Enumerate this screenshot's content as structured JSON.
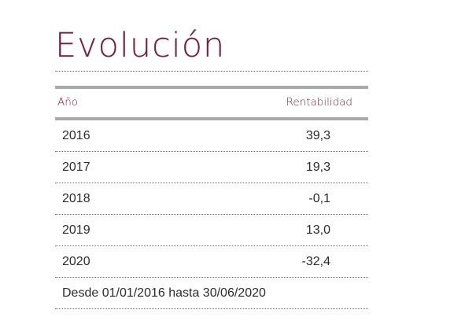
{
  "title": "Evolución",
  "table": {
    "headers": {
      "year": "Año",
      "return": "Rentabilidad"
    },
    "rows": [
      {
        "year": "2016",
        "return": "39,3"
      },
      {
        "year": "2017",
        "return": "19,3"
      },
      {
        "year": "2018",
        "return": "-0,1"
      },
      {
        "year": "2019",
        "return": "13,0"
      },
      {
        "year": "2020",
        "return": "-32,4"
      }
    ],
    "footer": "Desde 01/01/2016 hasta 30/06/2020"
  },
  "colors": {
    "accent": "#7a1e3d",
    "rule": "#a9a9a9",
    "text": "#2b2b2b"
  }
}
